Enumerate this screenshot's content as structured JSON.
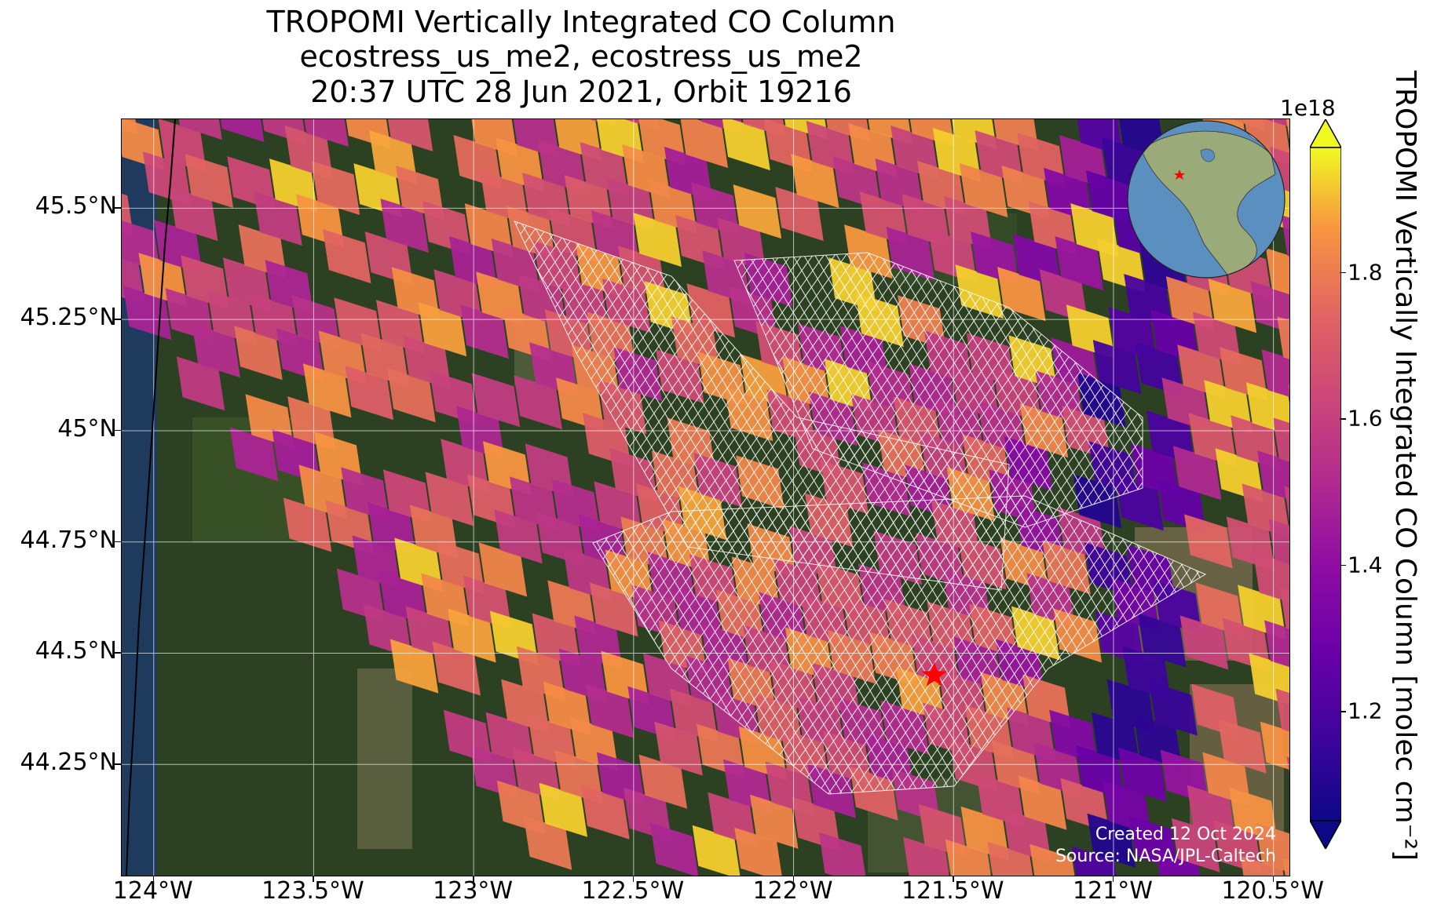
{
  "title": {
    "line1": "TROPOMI Vertically Integrated CO Column",
    "line2": "ecostress_us_me2, ecostress_us_me2",
    "line3": "20:37 UTC 28 Jun 2021, Orbit 19216"
  },
  "map": {
    "lon_range": [
      -124.1,
      -120.45
    ],
    "lat_range": [
      44.0,
      45.7
    ],
    "x_ticks": [
      "124°W",
      "123.5°W",
      "123°W",
      "122.5°W",
      "122°W",
      "121.5°W",
      "121°W",
      "120.5°W"
    ],
    "x_tick_values": [
      -124.0,
      -123.5,
      -123.0,
      -122.5,
      -122.0,
      -121.5,
      -121.0,
      -120.5
    ],
    "y_ticks": [
      "45.5°N",
      "45.25°N",
      "45°N",
      "44.75°N",
      "44.5°N",
      "44.25°N"
    ],
    "y_tick_values": [
      45.5,
      45.25,
      45.0,
      44.75,
      44.5,
      44.25
    ],
    "gridlines": true,
    "site_marker": {
      "symbol": "star",
      "color": "#ff0000",
      "lon": -121.56,
      "lat": 44.45
    },
    "coastline_color": "#000000",
    "swath_outline_color": "#ffffff"
  },
  "colorbar": {
    "colormap": "plasma",
    "exponent_label": "1e18",
    "ticks": [
      "1.2",
      "1.4",
      "1.6",
      "1.8"
    ],
    "tick_values": [
      1.2,
      1.4,
      1.6,
      1.8
    ],
    "range": [
      1.05,
      1.97
    ],
    "extend": "both",
    "label": "TROPOMI Vertically Integrated CO Column [molec cm⁻²]"
  },
  "inset": {
    "type": "globe",
    "ocean_color": "#5b8fbf",
    "land_color": "#9aaa78",
    "marker": "star"
  },
  "credits": {
    "line1": "Created 12 Oct 2024",
    "line2": "Source: NASA/JPL-Caltech"
  }
}
